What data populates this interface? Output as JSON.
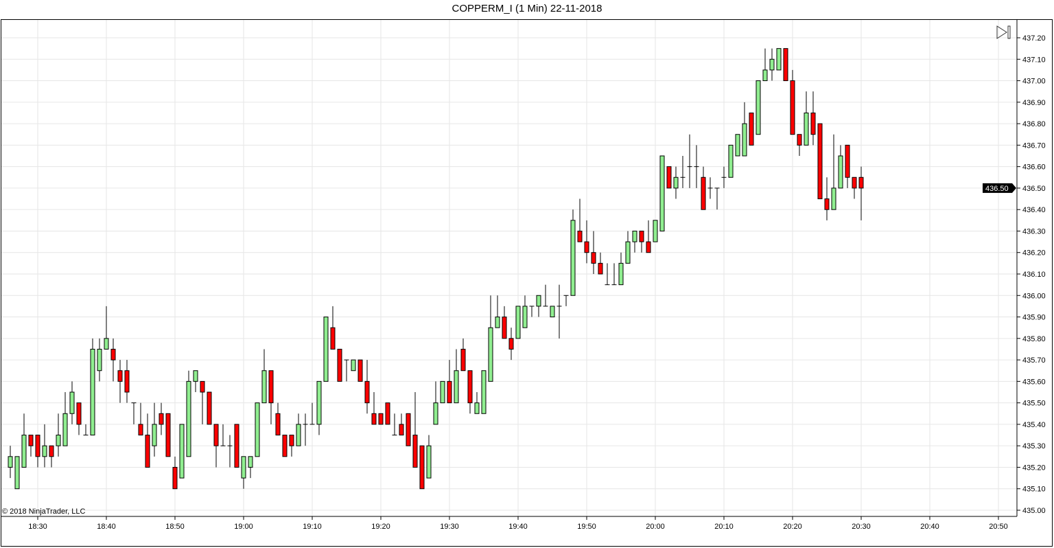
{
  "title": "COPPERM_I (1 Min)  22-11-2018",
  "copyright": "© 2018 NinjaTrader, LLC",
  "toolbar": {
    "scroll_to_end_icon": "play-to-end-icon"
  },
  "colors": {
    "up": "#90ee90",
    "down": "#ff0000",
    "grid": "#e6e6e6",
    "last_price_bg": "#000000"
  },
  "last_price_label": "436.50",
  "chart_data": {
    "type": "candlestick",
    "title": "COPPERM_I (1 Min)  22-11-2018",
    "x_start": "18:26",
    "interval_min": 1,
    "xlabel": "",
    "ylabel": "",
    "ylim": [
      435.0,
      437.2
    ],
    "y_ticks": [
      "435.00",
      "435.10",
      "435.20",
      "435.30",
      "435.40",
      "435.50",
      "435.60",
      "435.70",
      "435.80",
      "435.90",
      "436.00",
      "436.10",
      "436.20",
      "436.30",
      "436.40",
      "436.50",
      "436.60",
      "436.70",
      "436.80",
      "436.90",
      "437.00",
      "437.10",
      "437.20"
    ],
    "x_ticks": [
      "18:30",
      "18:40",
      "18:50",
      "19:00",
      "19:10",
      "19:20",
      "19:30",
      "19:40",
      "19:50",
      "20:00",
      "20:10",
      "20:20",
      "20:30",
      "20:40",
      "20:50"
    ],
    "grid": true,
    "ohlc": [
      [
        435.2,
        435.3,
        435.15,
        435.25
      ],
      [
        435.1,
        435.25,
        435.1,
        435.25
      ],
      [
        435.2,
        435.45,
        435.2,
        435.35
      ],
      [
        435.35,
        435.35,
        435.25,
        435.3
      ],
      [
        435.35,
        435.35,
        435.2,
        435.25
      ],
      [
        435.25,
        435.4,
        435.2,
        435.3
      ],
      [
        435.3,
        435.3,
        435.2,
        435.25
      ],
      [
        435.3,
        435.45,
        435.25,
        435.35
      ],
      [
        435.3,
        435.55,
        435.3,
        435.45
      ],
      [
        435.45,
        435.6,
        435.4,
        435.55
      ],
      [
        435.5,
        435.5,
        435.35,
        435.4
      ],
      [
        435.35,
        435.4,
        435.35,
        435.35
      ],
      [
        435.35,
        435.8,
        435.35,
        435.75
      ],
      [
        435.65,
        435.8,
        435.6,
        435.75
      ],
      [
        435.75,
        435.95,
        435.75,
        435.8
      ],
      [
        435.75,
        435.8,
        435.6,
        435.7
      ],
      [
        435.65,
        435.7,
        435.5,
        435.6
      ],
      [
        435.65,
        435.7,
        435.5,
        435.55
      ],
      [
        435.5,
        435.5,
        435.4,
        435.5
      ],
      [
        435.4,
        435.5,
        435.35,
        435.35
      ],
      [
        435.35,
        435.45,
        435.2,
        435.2
      ],
      [
        435.3,
        435.5,
        435.25,
        435.4
      ],
      [
        435.45,
        435.5,
        435.35,
        435.4
      ],
      [
        435.45,
        435.45,
        435.25,
        435.25
      ],
      [
        435.2,
        435.25,
        435.1,
        435.1
      ],
      [
        435.15,
        435.4,
        435.15,
        435.4
      ],
      [
        435.25,
        435.65,
        435.25,
        435.6
      ],
      [
        435.6,
        435.65,
        435.55,
        435.65
      ],
      [
        435.6,
        435.6,
        435.4,
        435.55
      ],
      [
        435.55,
        435.55,
        435.4,
        435.4
      ],
      [
        435.4,
        435.4,
        435.2,
        435.3
      ],
      [
        435.3,
        435.4,
        435.3,
        435.3
      ],
      [
        435.3,
        435.35,
        435.2,
        435.3
      ],
      [
        435.4,
        435.4,
        435.2,
        435.2
      ],
      [
        435.15,
        435.25,
        435.1,
        435.25
      ],
      [
        435.2,
        435.25,
        435.15,
        435.25
      ],
      [
        435.25,
        435.5,
        435.25,
        435.5
      ],
      [
        435.5,
        435.75,
        435.5,
        435.65
      ],
      [
        435.65,
        435.65,
        435.4,
        435.5
      ],
      [
        435.45,
        435.5,
        435.35,
        435.35
      ],
      [
        435.35,
        435.35,
        435.25,
        435.25
      ],
      [
        435.35,
        435.35,
        435.25,
        435.3
      ],
      [
        435.3,
        435.45,
        435.3,
        435.4
      ],
      [
        435.4,
        435.45,
        435.3,
        435.4
      ],
      [
        435.4,
        435.5,
        435.4,
        435.4
      ],
      [
        435.4,
        435.6,
        435.35,
        435.6
      ],
      [
        435.6,
        435.9,
        435.6,
        435.9
      ],
      [
        435.85,
        435.95,
        435.75,
        435.75
      ],
      [
        435.75,
        435.75,
        435.6,
        435.6
      ],
      [
        435.7,
        435.7,
        435.6,
        435.7
      ],
      [
        435.65,
        435.7,
        435.65,
        435.7
      ],
      [
        435.7,
        435.7,
        435.6,
        435.6
      ],
      [
        435.6,
        435.7,
        435.45,
        435.5
      ],
      [
        435.45,
        435.55,
        435.4,
        435.4
      ],
      [
        435.45,
        435.45,
        435.4,
        435.4
      ],
      [
        435.5,
        435.5,
        435.4,
        435.4
      ],
      [
        435.35,
        435.45,
        435.35,
        435.35
      ],
      [
        435.4,
        435.45,
        435.35,
        435.35
      ],
      [
        435.45,
        435.45,
        435.3,
        435.3
      ],
      [
        435.35,
        435.55,
        435.2,
        435.2
      ],
      [
        435.3,
        435.3,
        435.1,
        435.1
      ],
      [
        435.15,
        435.35,
        435.15,
        435.3
      ],
      [
        435.4,
        435.6,
        435.4,
        435.5
      ],
      [
        435.5,
        435.6,
        435.5,
        435.6
      ],
      [
        435.6,
        435.7,
        435.5,
        435.5
      ],
      [
        435.5,
        435.75,
        435.5,
        435.65
      ],
      [
        435.75,
        435.8,
        435.65,
        435.65
      ],
      [
        435.65,
        435.65,
        435.45,
        435.5
      ],
      [
        435.45,
        435.55,
        435.45,
        435.5
      ],
      [
        435.45,
        435.65,
        435.45,
        435.65
      ],
      [
        435.6,
        436.0,
        435.6,
        435.85
      ],
      [
        435.85,
        436.0,
        435.85,
        435.9
      ],
      [
        435.9,
        435.95,
        435.8,
        435.8
      ],
      [
        435.8,
        435.85,
        435.7,
        435.75
      ],
      [
        435.8,
        435.95,
        435.8,
        435.95
      ],
      [
        435.85,
        436.0,
        435.85,
        435.95
      ],
      [
        435.95,
        435.95,
        435.9,
        435.95
      ],
      [
        435.95,
        436.0,
        435.9,
        436.0
      ],
      [
        435.95,
        436.05,
        435.95,
        435.95
      ],
      [
        435.9,
        435.95,
        435.9,
        435.95
      ],
      [
        435.95,
        436.05,
        435.8,
        435.95
      ],
      [
        436.0,
        436.0,
        435.95,
        436.0
      ],
      [
        436.0,
        436.4,
        436.0,
        436.35
      ],
      [
        436.3,
        436.45,
        436.25,
        436.25
      ],
      [
        436.25,
        436.35,
        436.15,
        436.2
      ],
      [
        436.2,
        436.3,
        436.1,
        436.15
      ],
      [
        436.15,
        436.2,
        436.1,
        436.1
      ],
      [
        436.05,
        436.15,
        436.05,
        436.05
      ],
      [
        436.05,
        436.15,
        436.05,
        436.05
      ],
      [
        436.05,
        436.2,
        436.05,
        436.15
      ],
      [
        436.15,
        436.3,
        436.15,
        436.25
      ],
      [
        436.25,
        436.3,
        436.2,
        436.3
      ],
      [
        436.3,
        436.3,
        436.2,
        436.25
      ],
      [
        436.25,
        436.35,
        436.2,
        436.2
      ],
      [
        436.25,
        436.35,
        436.25,
        436.35
      ],
      [
        436.3,
        436.65,
        436.3,
        436.65
      ],
      [
        436.6,
        436.6,
        436.5,
        436.5
      ],
      [
        436.5,
        436.6,
        436.45,
        436.55
      ],
      [
        436.55,
        436.65,
        436.5,
        436.55
      ],
      [
        436.6,
        436.75,
        436.5,
        436.6
      ],
      [
        436.6,
        436.7,
        436.5,
        436.6
      ],
      [
        436.55,
        436.6,
        436.4,
        436.4
      ],
      [
        436.5,
        436.55,
        436.45,
        436.5
      ],
      [
        436.5,
        436.5,
        436.4,
        436.5
      ],
      [
        436.55,
        436.6,
        436.5,
        436.55
      ],
      [
        436.55,
        436.7,
        436.55,
        436.7
      ],
      [
        436.65,
        436.75,
        436.65,
        436.75
      ],
      [
        436.65,
        436.9,
        436.65,
        436.8
      ],
      [
        436.85,
        436.85,
        436.7,
        436.7
      ],
      [
        436.75,
        437.0,
        436.75,
        437.0
      ],
      [
        437.0,
        437.15,
        437.0,
        437.05
      ],
      [
        437.05,
        437.15,
        437.0,
        437.1
      ],
      [
        437.05,
        437.15,
        437.05,
        437.15
      ],
      [
        437.15,
        437.15,
        437.0,
        437.0
      ],
      [
        437.0,
        437.05,
        436.75,
        436.75
      ],
      [
        436.75,
        436.75,
        436.65,
        436.7
      ],
      [
        436.7,
        436.95,
        436.7,
        436.85
      ],
      [
        436.85,
        436.95,
        436.7,
        436.75
      ],
      [
        436.8,
        436.8,
        436.45,
        436.45
      ],
      [
        436.45,
        436.55,
        436.35,
        436.4
      ],
      [
        436.4,
        436.75,
        436.4,
        436.5
      ],
      [
        436.5,
        436.7,
        436.5,
        436.65
      ],
      [
        436.7,
        436.7,
        436.5,
        436.55
      ],
      [
        436.55,
        436.55,
        436.45,
        436.5
      ],
      [
        436.55,
        436.6,
        436.35,
        436.5
      ]
    ]
  }
}
